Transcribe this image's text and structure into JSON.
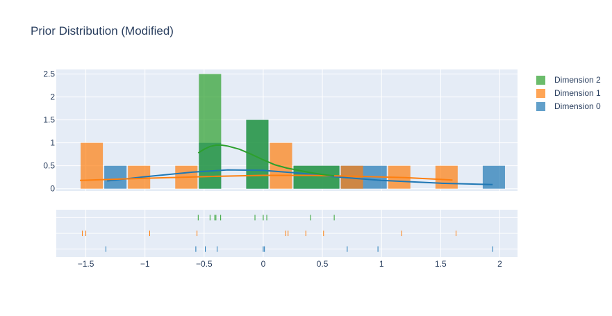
{
  "chart_data": {
    "type": "histogram",
    "title": "Prior Distribution (Modified)",
    "xlim": [
      -1.75,
      2.15
    ],
    "ylim": [
      -0.05,
      2.6
    ],
    "x_ticks": [
      -1.5,
      -1,
      -0.5,
      0,
      0.5,
      1,
      1.5,
      2
    ],
    "x_tick_labels": [
      "−1.5",
      "−1",
      "−0.5",
      "0",
      "0.5",
      "1",
      "1.5",
      "2"
    ],
    "y_ticks": [
      0,
      0.5,
      1,
      1.5,
      2,
      2.5
    ],
    "y_tick_labels": [
      "0",
      "0.5",
      "1",
      "1.5",
      "2",
      "2.5"
    ],
    "legend_position": "top-right",
    "series": [
      {
        "name": "Dimension 2",
        "color": "#2ca02c",
        "bins": [
          [
            -0.55,
            -0.35,
            2.5
          ],
          [
            -0.15,
            0.05,
            1.5
          ],
          [
            0.25,
            0.65,
            0.5
          ]
        ],
        "kde": [
          [
            -0.55,
            0.78
          ],
          [
            -0.5,
            0.86
          ],
          [
            -0.45,
            0.92
          ],
          [
            -0.4,
            0.95
          ],
          [
            -0.35,
            0.95
          ],
          [
            -0.3,
            0.93
          ],
          [
            -0.2,
            0.86
          ],
          [
            -0.1,
            0.75
          ],
          [
            0.0,
            0.63
          ],
          [
            0.1,
            0.52
          ],
          [
            0.2,
            0.45
          ],
          [
            0.3,
            0.4
          ],
          [
            0.4,
            0.35
          ],
          [
            0.5,
            0.31
          ],
          [
            0.6,
            0.28
          ]
        ],
        "rug": [
          -0.55,
          -0.45,
          -0.41,
          -0.4,
          -0.36,
          -0.07,
          0.0,
          0.03,
          0.4,
          0.6
        ]
      },
      {
        "name": "Dimension 1",
        "color": "#ff7f0e",
        "bins": [
          [
            -1.55,
            -1.35,
            1.0
          ],
          [
            -1.15,
            -0.95,
            0.5
          ],
          [
            -0.75,
            -0.55,
            0.5
          ],
          [
            0.05,
            0.25,
            1.0
          ],
          [
            0.65,
            0.85,
            0.5
          ],
          [
            1.05,
            1.25,
            0.5
          ],
          [
            1.45,
            1.65,
            0.5
          ]
        ],
        "kde": [
          [
            -1.55,
            0.18
          ],
          [
            -1.2,
            0.21
          ],
          [
            -0.8,
            0.24
          ],
          [
            -0.4,
            0.27
          ],
          [
            0.0,
            0.29
          ],
          [
            0.4,
            0.29
          ],
          [
            0.8,
            0.27
          ],
          [
            1.2,
            0.24
          ],
          [
            1.6,
            0.19
          ]
        ],
        "rug": [
          -1.53,
          -1.5,
          -0.96,
          -0.56,
          0.19,
          0.21,
          0.36,
          0.51,
          1.17,
          1.63
        ]
      },
      {
        "name": "Dimension 0",
        "color": "#1f77b4",
        "bins": [
          [
            -1.35,
            -1.15,
            0.5
          ],
          [
            -0.55,
            -0.35,
            1.0
          ],
          [
            -0.15,
            0.05,
            1.5
          ],
          [
            0.25,
            0.65,
            0.5
          ],
          [
            0.65,
            1.05,
            0.5
          ],
          [
            1.85,
            2.05,
            0.5
          ]
        ],
        "kde": [
          [
            -1.32,
            0.17
          ],
          [
            -1.0,
            0.26
          ],
          [
            -0.6,
            0.36
          ],
          [
            -0.3,
            0.41
          ],
          [
            0.0,
            0.4
          ],
          [
            0.3,
            0.34
          ],
          [
            0.6,
            0.26
          ],
          [
            1.0,
            0.18
          ],
          [
            1.5,
            0.12
          ],
          [
            1.94,
            0.09
          ]
        ],
        "rug": [
          -1.33,
          -0.57,
          -0.49,
          -0.39,
          0.0,
          0.01,
          0.71,
          0.97,
          1.94
        ]
      }
    ]
  }
}
